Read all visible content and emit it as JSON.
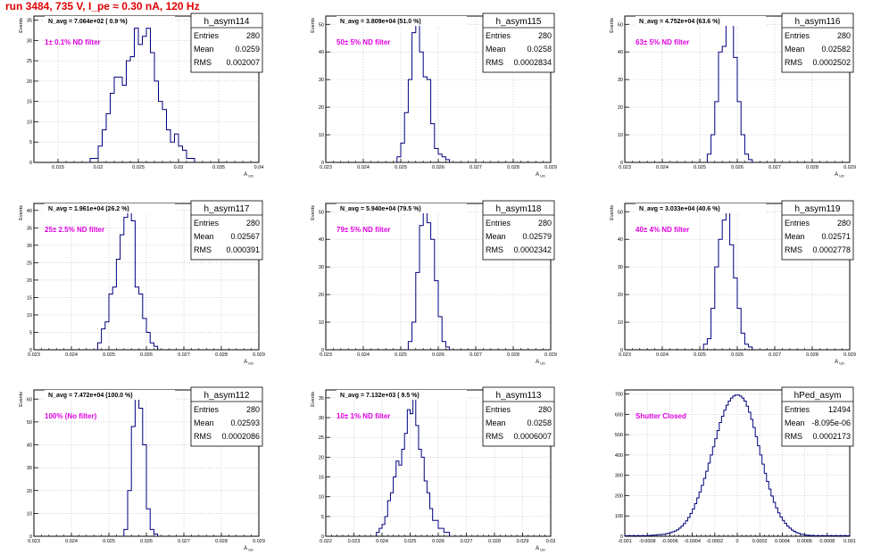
{
  "header": {
    "run_title": "run 3484,   735 V, I_pe ≈ 0.30 nA, 120 Hz"
  },
  "colors": {
    "title_red": "#e00000",
    "annotation_magenta": "#e000e0",
    "histogram_blue": "#00007f",
    "grid": "#bdbdbd"
  },
  "chart_data": [
    {
      "type": "histogram",
      "name": "h_asym114",
      "title": "N_avg = 7.064e+02 ( 0.9 %)",
      "annotation": "1± 0.1% ND filter",
      "stats": {
        "Entries": "280",
        "Mean": "0.0259",
        "RMS": "0.002007"
      },
      "ylabel": "Events",
      "xlabel": "A_UD",
      "xlim": [
        0.012,
        0.04
      ],
      "ylim": [
        0,
        36
      ],
      "xticks": [
        0.015,
        0.02,
        0.025,
        0.03,
        0.035,
        0.04
      ],
      "xtick_labels": [
        "0.015",
        "0.02",
        "0.025",
        "0.03",
        "0.035",
        "0.04"
      ],
      "yticks": [
        0,
        5,
        10,
        15,
        20,
        25,
        30,
        35
      ],
      "bin_width": 0.0005,
      "first_bin": 0.019,
      "counts": [
        1,
        1,
        4,
        8,
        12,
        17,
        21,
        21,
        19,
        25,
        26,
        33,
        29,
        31,
        33,
        27,
        20,
        15,
        13,
        8,
        5,
        7,
        4,
        3,
        1,
        1
      ]
    },
    {
      "type": "histogram",
      "name": "h_asym115",
      "title": "N_avg = 3.809e+04 (51.0 %)",
      "annotation": "50± 5% ND filter",
      "stats": {
        "Entries": "280",
        "Mean": "0.0258",
        "RMS": "0.0002834"
      },
      "ylabel": "Events",
      "xlabel": "A_UD",
      "xlim": [
        0.023,
        0.029
      ],
      "ylim": [
        0,
        53
      ],
      "xticks": [
        0.023,
        0.024,
        0.025,
        0.026,
        0.027,
        0.028,
        0.029
      ],
      "xtick_labels": [
        "0.023",
        "0.024",
        "0.025",
        "0.026",
        "0.027",
        "0.028",
        "0.029"
      ],
      "yticks": [
        0,
        10,
        20,
        30,
        40,
        50
      ],
      "bin_width": 0.0001,
      "first_bin": 0.0249,
      "counts": [
        2,
        7,
        18,
        30,
        47,
        50,
        40,
        31,
        30,
        14,
        5,
        3,
        2,
        1
      ]
    },
    {
      "type": "histogram",
      "name": "h_asym116",
      "title": "N_avg = 4.752e+04 (63.6 %)",
      "annotation": "63± 5% ND filter",
      "stats": {
        "Entries": "280",
        "Mean": "0.02582",
        "RMS": "0.0002502"
      },
      "ylabel": "Events",
      "xlabel": "A_UD",
      "xlim": [
        0.023,
        0.029
      ],
      "ylim": [
        0,
        53
      ],
      "xticks": [
        0.023,
        0.024,
        0.025,
        0.026,
        0.027,
        0.028,
        0.029
      ],
      "xtick_labels": [
        "0.023",
        "0.024",
        "0.025",
        "0.026",
        "0.027",
        "0.028",
        "0.029"
      ],
      "yticks": [
        0,
        10,
        20,
        30,
        40,
        50
      ],
      "bin_width": 0.0001,
      "first_bin": 0.0252,
      "counts": [
        3,
        10,
        22,
        40,
        42,
        50,
        52,
        38,
        22,
        10,
        3,
        1
      ]
    },
    {
      "type": "histogram",
      "name": "h_asym117",
      "title": "N_avg = 1.961e+04 (26.2 %)",
      "annotation": "25± 2.5% ND filter",
      "stats": {
        "Entries": "280",
        "Mean": "0.02567",
        "RMS": "0.000391"
      },
      "ylabel": "Events",
      "xlabel": "A_UD",
      "xlim": [
        0.023,
        0.029
      ],
      "ylim": [
        0,
        42
      ],
      "xticks": [
        0.023,
        0.024,
        0.025,
        0.026,
        0.027,
        0.028,
        0.029
      ],
      "xtick_labels": [
        "0.023",
        "0.024",
        "0.025",
        "0.026",
        "0.027",
        "0.028",
        "0.029"
      ],
      "yticks": [
        0,
        5,
        10,
        15,
        20,
        25,
        30,
        35,
        40
      ],
      "bin_width": 0.0001,
      "first_bin": 0.0247,
      "counts": [
        2,
        6,
        8,
        16,
        18,
        26,
        33,
        38,
        40,
        37,
        18,
        16,
        9,
        5,
        2,
        1
      ]
    },
    {
      "type": "histogram",
      "name": "h_asym118",
      "title": "N_avg = 5.940e+04 (79.5 %)",
      "annotation": "79± 5% ND filter",
      "stats": {
        "Entries": "280",
        "Mean": "0.02579",
        "RMS": "0.0002342"
      },
      "ylabel": "Events",
      "xlabel": "A_UD",
      "xlim": [
        0.023,
        0.029
      ],
      "ylim": [
        0,
        53
      ],
      "xticks": [
        0.023,
        0.024,
        0.025,
        0.026,
        0.027,
        0.028,
        0.029
      ],
      "xtick_labels": [
        "0.023",
        "0.024",
        "0.025",
        "0.026",
        "0.027",
        "0.028",
        "0.029"
      ],
      "yticks": [
        0,
        10,
        20,
        30,
        40,
        50
      ],
      "bin_width": 0.0001,
      "first_bin": 0.0252,
      "counts": [
        3,
        10,
        28,
        45,
        50,
        46,
        40,
        25,
        12,
        3,
        1
      ]
    },
    {
      "type": "histogram",
      "name": "h_asym119",
      "title": "N_avg = 3.033e+04 (40.6 %)",
      "annotation": "40± 4% ND filter",
      "stats": {
        "Entries": "280",
        "Mean": "0.02571",
        "RMS": "0.0002778"
      },
      "ylabel": "Events",
      "xlabel": "A_UD",
      "xlim": [
        0.023,
        0.029
      ],
      "ylim": [
        0,
        53
      ],
      "xticks": [
        0.023,
        0.024,
        0.025,
        0.026,
        0.027,
        0.028,
        0.029
      ],
      "xtick_labels": [
        "0.023",
        "0.024",
        "0.025",
        "0.026",
        "0.027",
        "0.028",
        "0.029"
      ],
      "yticks": [
        0,
        10,
        20,
        30,
        40,
        50
      ],
      "bin_width": 0.0001,
      "first_bin": 0.0251,
      "counts": [
        2,
        4,
        15,
        30,
        40,
        47,
        50,
        38,
        26,
        15,
        6,
        2,
        1
      ]
    },
    {
      "type": "histogram",
      "name": "h_asym112",
      "title": "N_avg = 7.472e+04 (100.0 %)",
      "annotation": "100% (No filter)",
      "stats": {
        "Entries": "280",
        "Mean": "0.02593",
        "RMS": "0.0002086"
      },
      "ylabel": "Events",
      "xlabel": "A_UD",
      "xlim": [
        0.023,
        0.029
      ],
      "ylim": [
        0,
        64
      ],
      "xticks": [
        0.023,
        0.024,
        0.025,
        0.026,
        0.027,
        0.028,
        0.029
      ],
      "xtick_labels": [
        "0.023",
        "0.024",
        "0.025",
        "0.026",
        "0.027",
        "0.028",
        "0.029"
      ],
      "yticks": [
        0,
        10,
        20,
        30,
        40,
        50,
        60
      ],
      "bin_width": 0.0001,
      "first_bin": 0.0254,
      "counts": [
        3,
        20,
        48,
        60,
        56,
        40,
        12,
        3,
        1
      ]
    },
    {
      "type": "histogram",
      "name": "h_asym113",
      "title": "N_avg = 7.132e+03 ( 9.5 %)",
      "annotation": "10± 1% ND filter",
      "stats": {
        "Entries": "280",
        "Mean": "0.0258",
        "RMS": "0.0006007"
      },
      "ylabel": "Events",
      "xlabel": "A_UD",
      "xlim": [
        0.022,
        0.03
      ],
      "ylim": [
        0,
        37
      ],
      "xticks": [
        0.022,
        0.023,
        0.024,
        0.025,
        0.026,
        0.027,
        0.028,
        0.029,
        0.03
      ],
      "xtick_labels": [
        "0.022",
        "0.023",
        "0.024",
        "0.025",
        "0.026",
        "0.027",
        "0.028",
        "0.029",
        "0.03"
      ],
      "yticks": [
        0,
        5,
        10,
        15,
        20,
        25,
        30,
        35
      ],
      "bin_width": 0.0001,
      "first_bin": 0.0238,
      "counts": [
        1,
        2,
        3,
        5,
        9,
        11,
        15,
        19,
        18,
        22,
        26,
        32,
        31,
        35,
        28,
        22,
        20,
        14,
        11,
        7,
        4,
        4,
        2,
        2,
        1,
        1
      ]
    },
    {
      "type": "histogram",
      "name": "hPed_asym",
      "title": "",
      "annotation": "Shutter Closed",
      "stats": {
        "Entries": "12494",
        "Mean": "-8.095e-06",
        "RMS": "0.0002173"
      },
      "ylabel": "",
      "xlabel": "",
      "xlim": [
        -0.001,
        0.001
      ],
      "ylim": [
        0,
        720
      ],
      "xticks": [
        -0.001,
        -0.0008,
        -0.0006,
        -0.0004,
        -0.0002,
        0,
        0.0002,
        0.0004,
        0.0006,
        0.0008,
        0.001
      ],
      "xtick_labels": [
        "-0.001",
        "-0.0008",
        "-0.0006",
        "-0.0004",
        "-0.0002",
        "0",
        "0.0002",
        "0.0004",
        "0.0006",
        "0.0008",
        "0.001"
      ],
      "yticks": [
        0,
        100,
        200,
        300,
        400,
        500,
        600,
        700
      ],
      "bin_width": 2e-05,
      "first_bin": -0.001,
      "counts": [
        3,
        3,
        3,
        3,
        3,
        3,
        3,
        3,
        3,
        3,
        4,
        4,
        5,
        6,
        7,
        8,
        9,
        10,
        12,
        15,
        18,
        22,
        26,
        32,
        40,
        50,
        62,
        76,
        93,
        112,
        134,
        160,
        188,
        218,
        250,
        285,
        320,
        360,
        400,
        440,
        480,
        520,
        560,
        590,
        620,
        645,
        665,
        680,
        690,
        695,
        695,
        690,
        680,
        665,
        640,
        610,
        575,
        535,
        490,
        445,
        400,
        355,
        310,
        270,
        232,
        198,
        167,
        140,
        115,
        95,
        78,
        63,
        50,
        40,
        31,
        24,
        18,
        14,
        10,
        8,
        6,
        5,
        4,
        4,
        3,
        3,
        3,
        3,
        3,
        3,
        3,
        3,
        3,
        3,
        3,
        3,
        3,
        3,
        3,
        3
      ]
    }
  ]
}
